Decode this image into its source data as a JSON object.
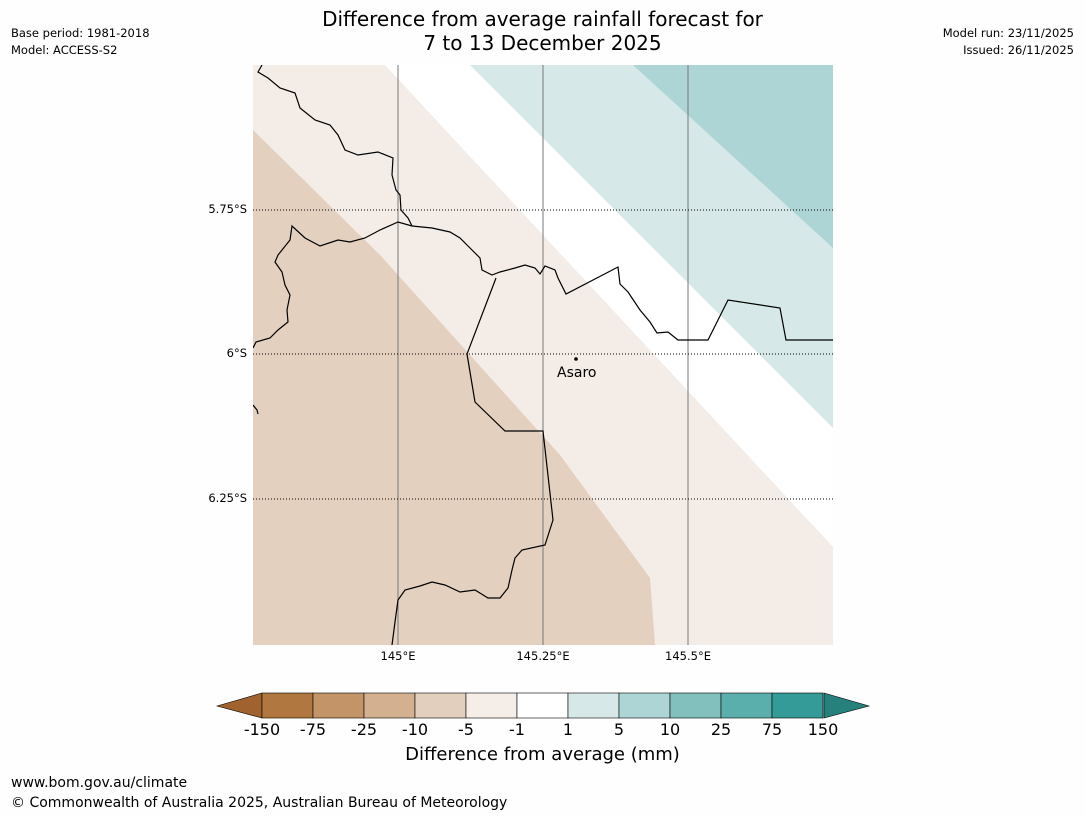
{
  "title_line1": "Difference from average rainfall forecast for",
  "title_line2": "7 to 13 December 2025",
  "meta_left": {
    "base_period": "Base period: 1981-2018",
    "model": "Model: ACCESS-S2"
  },
  "meta_right": {
    "model_run": "Model run: 23/11/2025",
    "issued": "Issued: 26/11/2025"
  },
  "map": {
    "place": {
      "name": "Asaro"
    },
    "lat_labels": [
      "5.75°S",
      "6°S",
      "6.25°S"
    ],
    "lon_labels": [
      "145°E",
      "145.25°E",
      "145.5°E"
    ]
  },
  "colorbar": {
    "label": "Difference from average (mm)",
    "ticks": [
      "-150",
      "-75",
      "-25",
      "-10",
      "-5",
      "-1",
      "1",
      "5",
      "10",
      "25",
      "75",
      "150"
    ],
    "colors": [
      "#a0622f",
      "#b07840",
      "#c29468",
      "#d3b08f",
      "#e2cfbd",
      "#f5ede7",
      "#ffffff",
      "#d6e9e8",
      "#aed5d5",
      "#82c0bd",
      "#5aaeac",
      "#349b98",
      "#26807c"
    ]
  },
  "footer": {
    "url": "www.bom.gov.au/climate",
    "copyright": "© Commonwealth of Australia 2025, Australian Bureau of Meteorology"
  }
}
